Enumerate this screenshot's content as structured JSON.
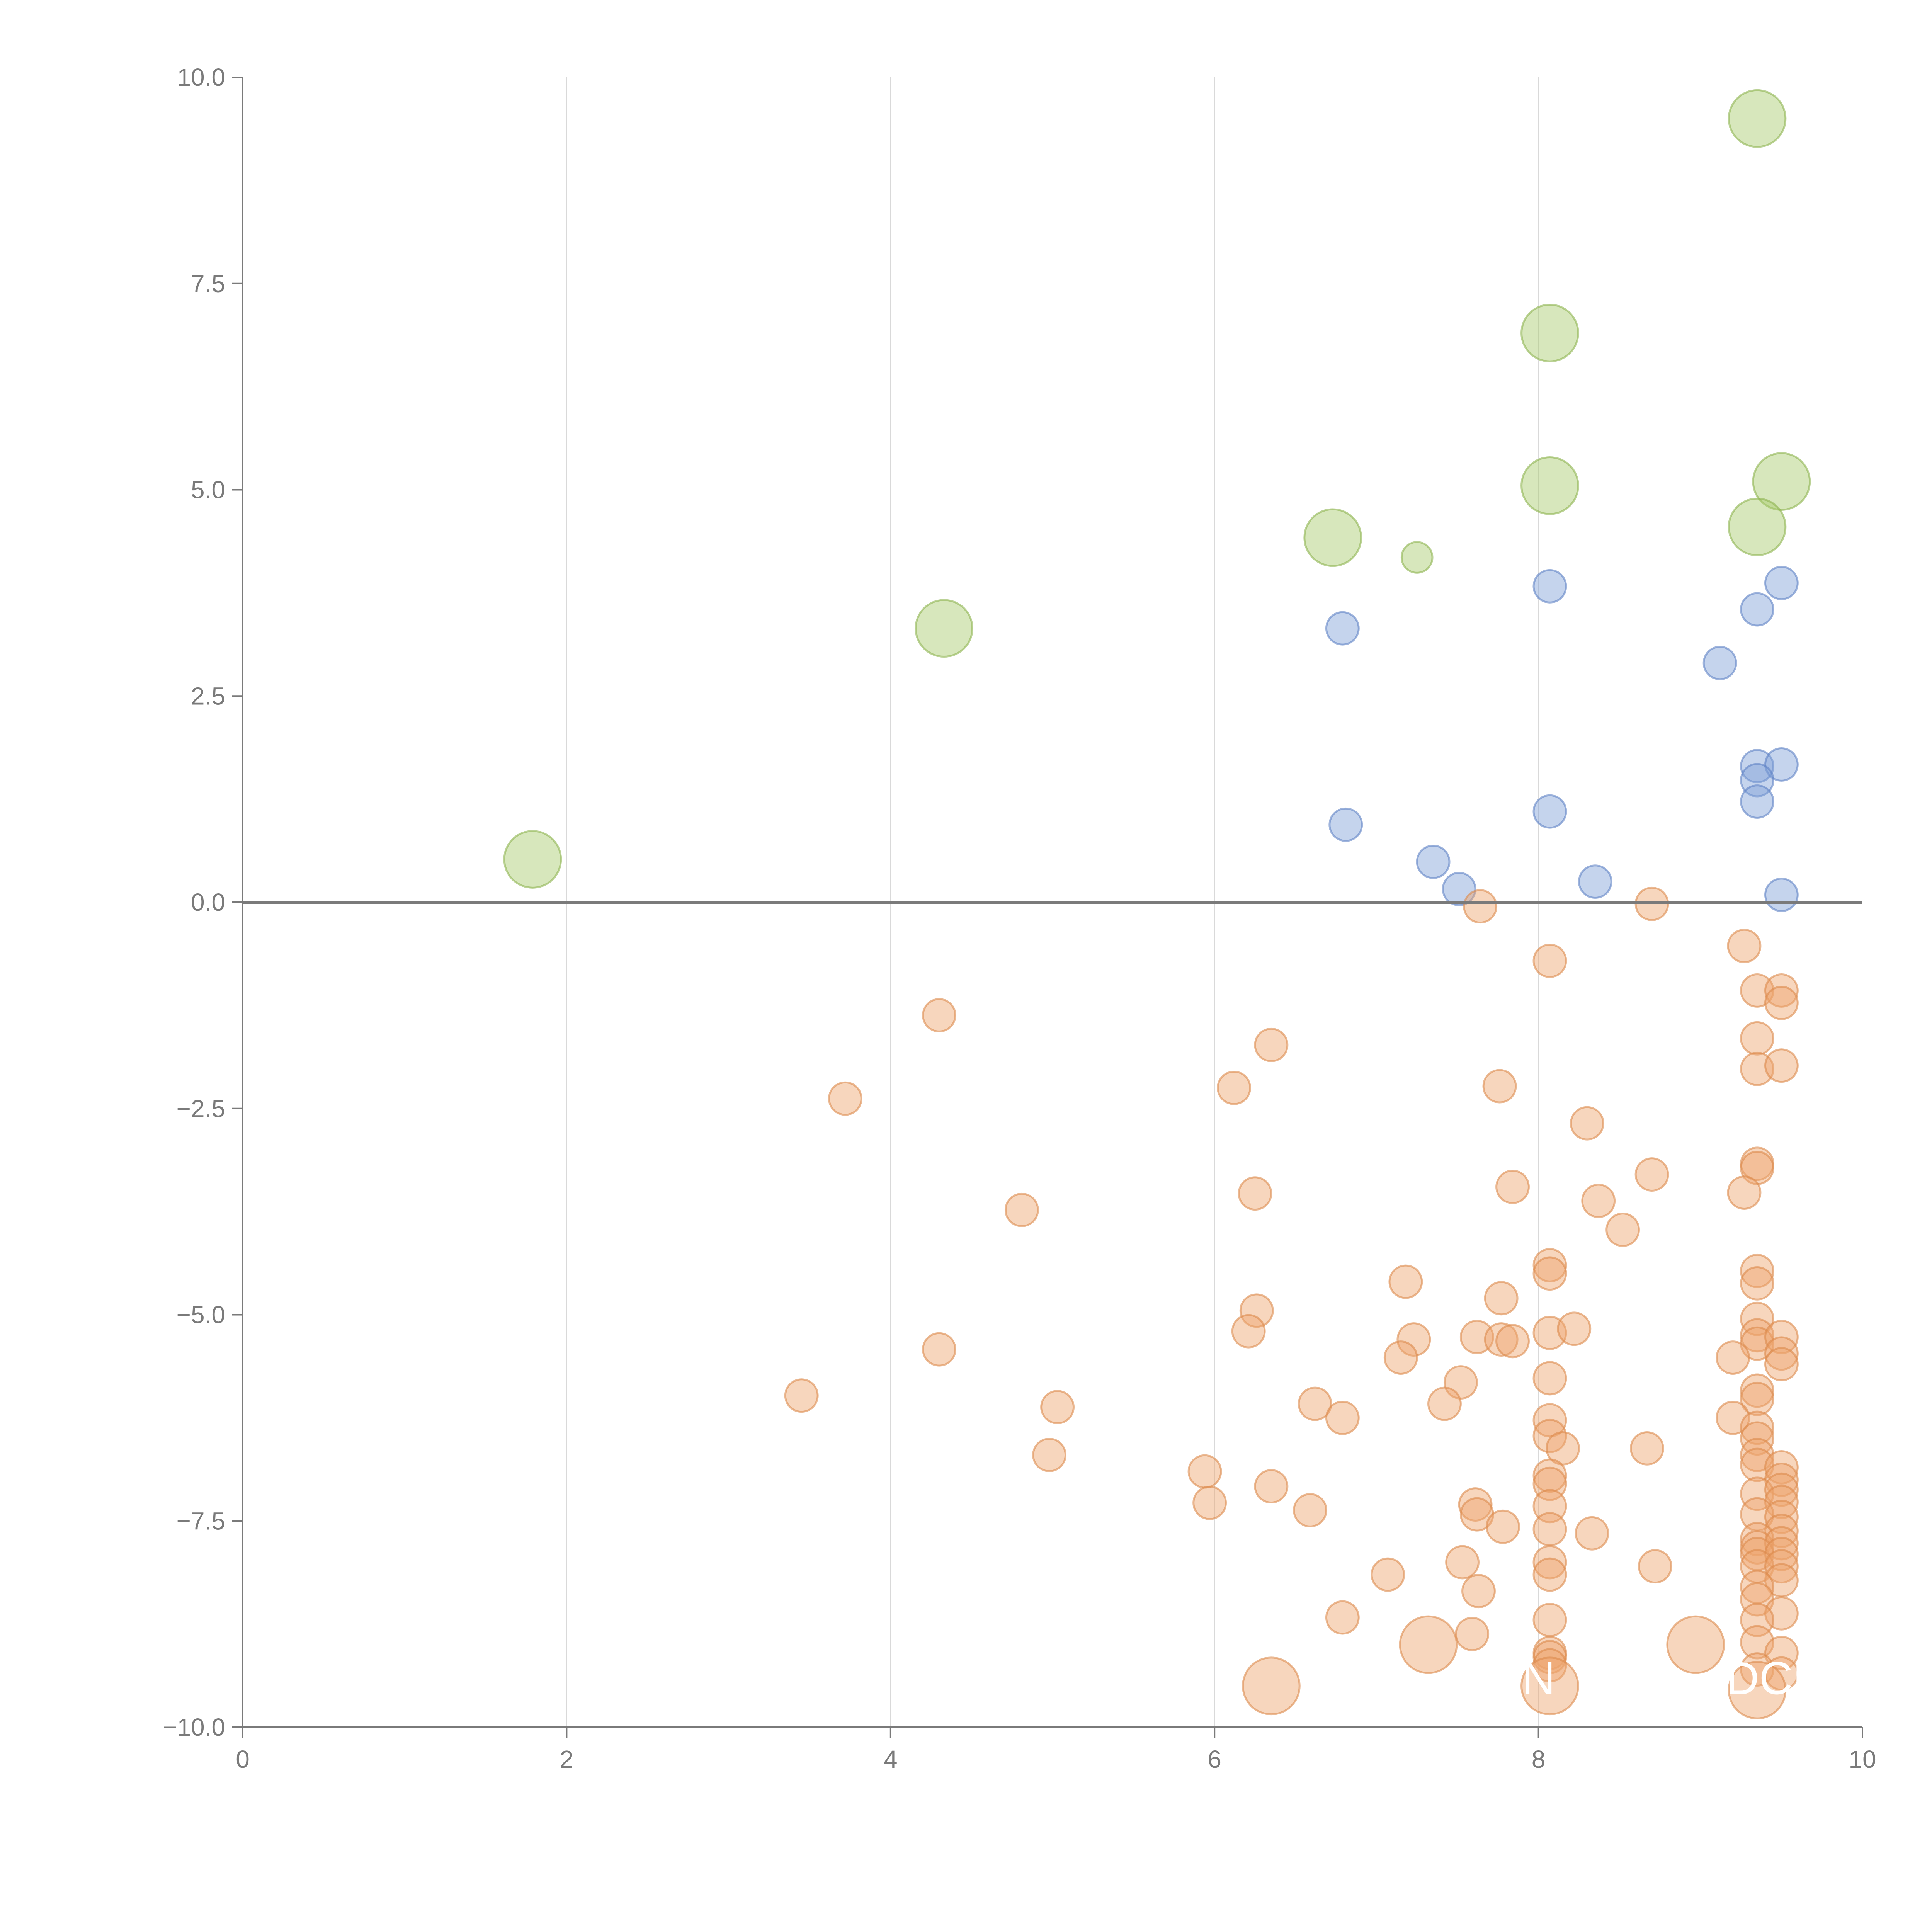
{
  "chart_data": {
    "type": "scatter",
    "title": "",
    "xlabel": "",
    "ylabel": "",
    "xlim": [
      0,
      10
    ],
    "ylim": [
      -10,
      10
    ],
    "grid": "vertical",
    "x_ticks": [
      "0",
      "2",
      "4",
      "6",
      "8",
      "10"
    ],
    "y_ticks": [
      "10.0",
      "7.5",
      "5.0",
      "2.5",
      "0.0",
      "−2.5",
      "−5.0",
      "−7.5",
      "−10.0"
    ],
    "overlay_labels": [
      {
        "text": "N",
        "x": 8.0,
        "y": -9.6
      },
      {
        "text": "DCF",
        "x": 9.45,
        "y": -9.6
      }
    ],
    "series": [
      {
        "name": "green",
        "color": "#a6c96a",
        "stroke": "#8db450",
        "size": 3.5,
        "points": [
          [
            9.35,
            9.5
          ],
          [
            8.07,
            6.9
          ],
          [
            8.07,
            5.05
          ],
          [
            9.5,
            5.1
          ],
          [
            9.35,
            4.55
          ],
          [
            6.73,
            4.42
          ],
          [
            4.33,
            3.32
          ],
          [
            1.79,
            0.52
          ]
        ]
      },
      {
        "name": "green-small",
        "color": "#a6c96a",
        "stroke": "#8db450",
        "size": 1.9,
        "points": [
          [
            7.25,
            4.18
          ]
        ]
      },
      {
        "name": "blue",
        "color": "#7f9fd6",
        "stroke": "#5f82c4",
        "size": 2.0,
        "points": [
          [
            8.07,
            3.83
          ],
          [
            9.5,
            3.87
          ],
          [
            9.35,
            3.55
          ],
          [
            6.79,
            3.32
          ],
          [
            9.12,
            2.9
          ],
          [
            9.35,
            1.65
          ],
          [
            9.5,
            1.67
          ],
          [
            9.35,
            1.48
          ],
          [
            9.35,
            1.22
          ],
          [
            8.07,
            1.1
          ],
          [
            6.81,
            0.94
          ],
          [
            7.35,
            0.49
          ],
          [
            7.51,
            0.16
          ],
          [
            8.35,
            0.25
          ],
          [
            9.5,
            0.09
          ]
        ]
      },
      {
        "name": "orange",
        "color": "#eea46c",
        "stroke": "#dc8a4c",
        "size": 2.0,
        "points": [
          [
            7.64,
            -0.05
          ],
          [
            8.7,
            -0.02
          ],
          [
            9.27,
            -0.53
          ],
          [
            8.07,
            -0.71
          ],
          [
            9.35,
            -1.07
          ],
          [
            9.5,
            -1.07
          ],
          [
            9.5,
            -1.22
          ],
          [
            4.3,
            -1.37
          ],
          [
            6.35,
            -1.73
          ],
          [
            9.35,
            -1.65
          ],
          [
            9.35,
            -2.02
          ],
          [
            9.5,
            -1.98
          ],
          [
            6.12,
            -2.25
          ],
          [
            7.76,
            -2.23
          ],
          [
            3.72,
            -2.38
          ],
          [
            8.3,
            -2.68
          ],
          [
            9.35,
            -3.17
          ],
          [
            9.35,
            -3.22
          ],
          [
            8.7,
            -3.3
          ],
          [
            7.84,
            -3.45
          ],
          [
            9.27,
            -3.52
          ],
          [
            6.25,
            -3.53
          ],
          [
            8.37,
            -3.62
          ],
          [
            4.81,
            -3.73
          ],
          [
            8.52,
            -3.97
          ],
          [
            8.07,
            -4.4
          ],
          [
            8.07,
            -4.5
          ],
          [
            9.35,
            -4.47
          ],
          [
            9.35,
            -4.62
          ],
          [
            7.18,
            -4.6
          ],
          [
            7.77,
            -4.8
          ],
          [
            6.26,
            -4.95
          ],
          [
            9.35,
            -5.05
          ],
          [
            6.21,
            -5.2
          ],
          [
            8.07,
            -5.22
          ],
          [
            8.22,
            -5.17
          ],
          [
            7.23,
            -5.3
          ],
          [
            7.62,
            -5.27
          ],
          [
            7.77,
            -5.3
          ],
          [
            7.84,
            -5.32
          ],
          [
            9.35,
            -5.25
          ],
          [
            9.35,
            -5.35
          ],
          [
            9.5,
            -5.27
          ],
          [
            4.3,
            -5.42
          ],
          [
            9.5,
            -5.47
          ],
          [
            9.2,
            -5.52
          ],
          [
            7.15,
            -5.52
          ],
          [
            9.5,
            -5.6
          ],
          [
            8.07,
            -5.77
          ],
          [
            7.52,
            -5.82
          ],
          [
            9.35,
            -5.92
          ],
          [
            9.35,
            -6.02
          ],
          [
            3.45,
            -5.98
          ],
          [
            7.42,
            -6.08
          ],
          [
            6.62,
            -6.08
          ],
          [
            5.03,
            -6.12
          ],
          [
            6.79,
            -6.25
          ],
          [
            9.2,
            -6.25
          ],
          [
            8.07,
            -6.28
          ],
          [
            9.35,
            -6.37
          ],
          [
            8.07,
            -6.47
          ],
          [
            9.35,
            -6.5
          ],
          [
            8.15,
            -6.62
          ],
          [
            8.67,
            -6.62
          ],
          [
            4.98,
            -6.7
          ],
          [
            9.35,
            -6.7
          ],
          [
            9.35,
            -6.82
          ],
          [
            9.5,
            -6.85
          ],
          [
            5.94,
            -6.9
          ],
          [
            8.07,
            -6.95
          ],
          [
            8.07,
            -7.05
          ],
          [
            9.5,
            -7.0
          ],
          [
            6.35,
            -7.08
          ],
          [
            9.35,
            -7.17
          ],
          [
            9.5,
            -7.12
          ],
          [
            5.97,
            -7.28
          ],
          [
            9.5,
            -7.27
          ],
          [
            7.61,
            -7.3
          ],
          [
            8.07,
            -7.32
          ],
          [
            6.59,
            -7.37
          ],
          [
            7.62,
            -7.42
          ],
          [
            9.35,
            -7.42
          ],
          [
            9.5,
            -7.45
          ],
          [
            7.78,
            -7.57
          ],
          [
            8.07,
            -7.6
          ],
          [
            9.5,
            -7.62
          ],
          [
            8.33,
            -7.65
          ],
          [
            9.35,
            -7.72
          ],
          [
            9.35,
            -7.82
          ],
          [
            9.5,
            -7.77
          ],
          [
            9.35,
            -7.9
          ],
          [
            9.5,
            -7.9
          ],
          [
            7.53,
            -8.0
          ],
          [
            8.07,
            -8.0
          ],
          [
            8.72,
            -8.05
          ],
          [
            9.35,
            -8.05
          ],
          [
            9.5,
            -8.05
          ],
          [
            7.07,
            -8.15
          ],
          [
            8.07,
            -8.15
          ],
          [
            9.5,
            -8.22
          ],
          [
            9.35,
            -8.3
          ],
          [
            7.63,
            -8.35
          ],
          [
            9.35,
            -8.45
          ],
          [
            9.5,
            -8.62
          ],
          [
            6.79,
            -8.67
          ],
          [
            8.07,
            -8.7
          ],
          [
            9.35,
            -8.7
          ],
          [
            7.59,
            -8.87
          ],
          [
            9.35,
            -8.97
          ],
          [
            8.07,
            -9.1
          ],
          [
            8.07,
            -9.15
          ],
          [
            9.5,
            -9.1
          ],
          [
            8.07,
            -9.25
          ],
          [
            9.35,
            -9.3
          ],
          [
            9.5,
            -9.35
          ]
        ]
      },
      {
        "name": "orange-large",
        "color": "#eea46c",
        "stroke": "#dc8a4c",
        "size": 3.5,
        "points": [
          [
            7.32,
            -9.0
          ],
          [
            8.97,
            -9.0
          ],
          [
            6.35,
            -9.5
          ],
          [
            8.07,
            -9.5
          ],
          [
            9.35,
            -9.55
          ]
        ]
      }
    ]
  }
}
